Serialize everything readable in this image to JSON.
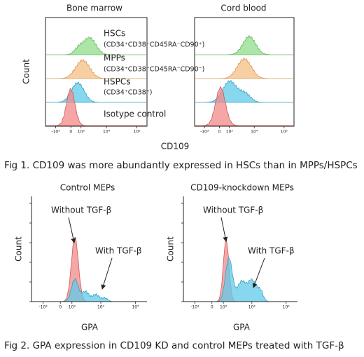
{
  "figure1": {
    "panels": [
      {
        "title": "Bone marrow"
      },
      {
        "title": "Cord blood"
      }
    ],
    "y_label": "Count",
    "x_label": "CD109",
    "populations": [
      {
        "name": "HSCs",
        "markers": "(CD34⁺CD38⁻CD45RA⁻CD90⁺)"
      },
      {
        "name": "MPPs",
        "markers": "(CD34⁺CD38⁻CD45RA⁻CD90⁻)"
      },
      {
        "name": "HSPCs",
        "markers": "(CD34⁺CD38⁺)"
      },
      {
        "name": "Isotype control"
      }
    ],
    "x_ticks": [
      "-10³",
      "0",
      "10³",
      "10⁴",
      "10⁵"
    ],
    "caption": "Fig 1. CD109 was more abundantly expressed in HSCs than in MPPs/HSPCs"
  },
  "figure2": {
    "panels": [
      {
        "title": "Control MEPs"
      },
      {
        "title": "CD109-knockdown MEPs"
      }
    ],
    "y_label": "Count",
    "x_label": "GPA",
    "annotations": [
      "Without TGF-β",
      "With TGF-β"
    ],
    "x_ticks": [
      "-10³",
      "0",
      "10³",
      "10⁴",
      "10⁵"
    ],
    "caption": "Fig 2. GPA expression in CD109 KD and control MEPs treated with TGF-β"
  }
}
